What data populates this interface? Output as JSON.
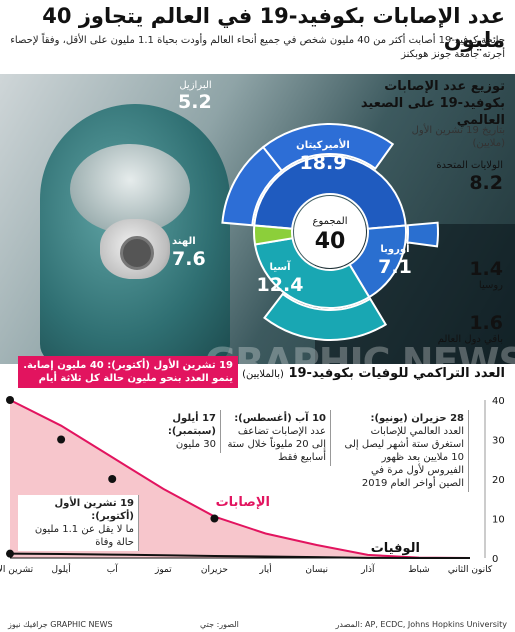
{
  "header": {
    "title": "عدد الإصابات بكوفيد-19 في العالم يتجاوز 40 مليون",
    "subtitle": "جائحة كوفيد-19 أصابت أكثر من 40 مليون شخص في جميع أنحاء العالم وأودت بحياة 1.1 مليون على الأقل، وفقاً لإحصاء أجرته جامعة جونز هوبكنز"
  },
  "donut": {
    "title": "توزيع عدد الإصابات بكوفيد-19 على الصعيد العالمي",
    "date": "بتاريخ 19 تشرين الأول (ملايين)",
    "center_label": "المجموع",
    "center_value": "40",
    "colors": {
      "americas": "#1f5bbf",
      "europe": "#2a6fd0",
      "asia": "#19a7b3",
      "africa": "#8ccf3a",
      "outer_us": "#2d6ed6",
      "outer_brazil": "#2d6ed6"
    }
  },
  "chart_data": [
    {
      "type": "pie",
      "title": "توزيع عدد الإصابات بكوفيد-19 على الصعيد العالمي",
      "unit": "ملايين",
      "total": 40,
      "slices": [
        {
          "name": "الأميركيتان",
          "value": 18.9
        },
        {
          "name": "أوروبا",
          "value": 7.1
        },
        {
          "name": "آسيا",
          "value": 12.4
        },
        {
          "name": "",
          "value": 1.6
        }
      ],
      "outer_ring": [
        {
          "name": "الولايات المتحدة",
          "value": 8.2
        },
        {
          "name": "البرازيل",
          "value": 5.2
        },
        {
          "name": "روسيا",
          "value": 1.4
        },
        {
          "name": "الهند",
          "value": 7.6
        },
        {
          "name": "باقي دول العالم",
          "value": 1.6
        }
      ]
    },
    {
      "type": "area",
      "title": "العدد التراكمي للوفيات بكوفيد-19",
      "unit": "(بالملايين)",
      "x": [
        "كانون الثاني",
        "شباط",
        "آذار",
        "نيسان",
        "أيار",
        "حزيران",
        "تموز",
        "آب",
        "أيلول",
        "تشرين الأول"
      ],
      "series": [
        {
          "name": "الإصابات",
          "values": [
            0.01,
            0.08,
            0.8,
            3.3,
            6.2,
            10.5,
            17.5,
            25.5,
            33.5,
            40
          ]
        },
        {
          "name": "الوفيات",
          "values": [
            0.0,
            0.003,
            0.04,
            0.23,
            0.37,
            0.52,
            0.69,
            0.86,
            1.0,
            1.1
          ]
        }
      ],
      "ylim": [
        0,
        40
      ],
      "yticks": [
        "0",
        "10",
        "20",
        "30",
        "40"
      ],
      "grid": false
    }
  ],
  "right_labels": {
    "us": {
      "name": "الولايات المتحدة",
      "value": "8.2"
    },
    "russia": {
      "name": "روسيا",
      "value": "1.4"
    },
    "rest": {
      "name": "باقي دول العالم",
      "value": "1.6"
    },
    "brazil": {
      "name": "البرازيل",
      "value": "5.2"
    },
    "india": {
      "name": "الهند",
      "value": "7.6"
    }
  },
  "inner_labels": {
    "americas": {
      "name": "الأميركيتان",
      "value": "18.9"
    },
    "europe": {
      "name": "أوروبا",
      "value": "7.1"
    },
    "asia": {
      "name": "آسيا",
      "value": "12.4"
    }
  },
  "timeline": {
    "title": "العدد التراكمي للوفيات بكوفيد-19",
    "unit": "(بالملايين)",
    "banner": "19 تشرين الأول (أكتوبر): 40 مليون إصابة. ينمو العدد بنحو مليون حالة كل ثلاثة أيام",
    "cases_label": "الإصابات",
    "deaths_label": "الوفيات",
    "annotations": [
      {
        "date": "17 أيلول (سبتمبر):",
        "text": "30 مليون"
      },
      {
        "date": "10 آب (أغسطس):",
        "text": "عدد الإصابات تضاعف إلى 20 مليوناً خلال ستة أسابيع فقط"
      },
      {
        "date": "28 حزيران (يونيو):",
        "text": "العدد العالمي للإصابات استغرق ستة أشهر ليصل إلى 10 ملايين بعد ظهور الفيروس لأول مرة في الصين أواخر العام 2019"
      },
      {
        "date": "19 تشرين الأول (أكتوبر):",
        "text": "ما لا يقل عن 1.1 مليون حالة وفاة"
      }
    ],
    "months": [
      "كانون الثاني",
      "شباط",
      "آذار",
      "نيسان",
      "أيار",
      "حزيران",
      "تموز",
      "آب",
      "أيلول",
      "تشرين الأول"
    ],
    "colors": {
      "cases_fill": "#f7c6cc",
      "cases_line": "#e2145f",
      "deaths_line": "#111111",
      "axis": "#111111"
    }
  },
  "watermark": "GRAPHIC NEWS",
  "footer": {
    "source": "المصدر: AP, ECDC, Johns Hopkins University",
    "photo": "الصور: جتي",
    "brand": "جرافيك نيوز GRAPHIC NEWS"
  }
}
